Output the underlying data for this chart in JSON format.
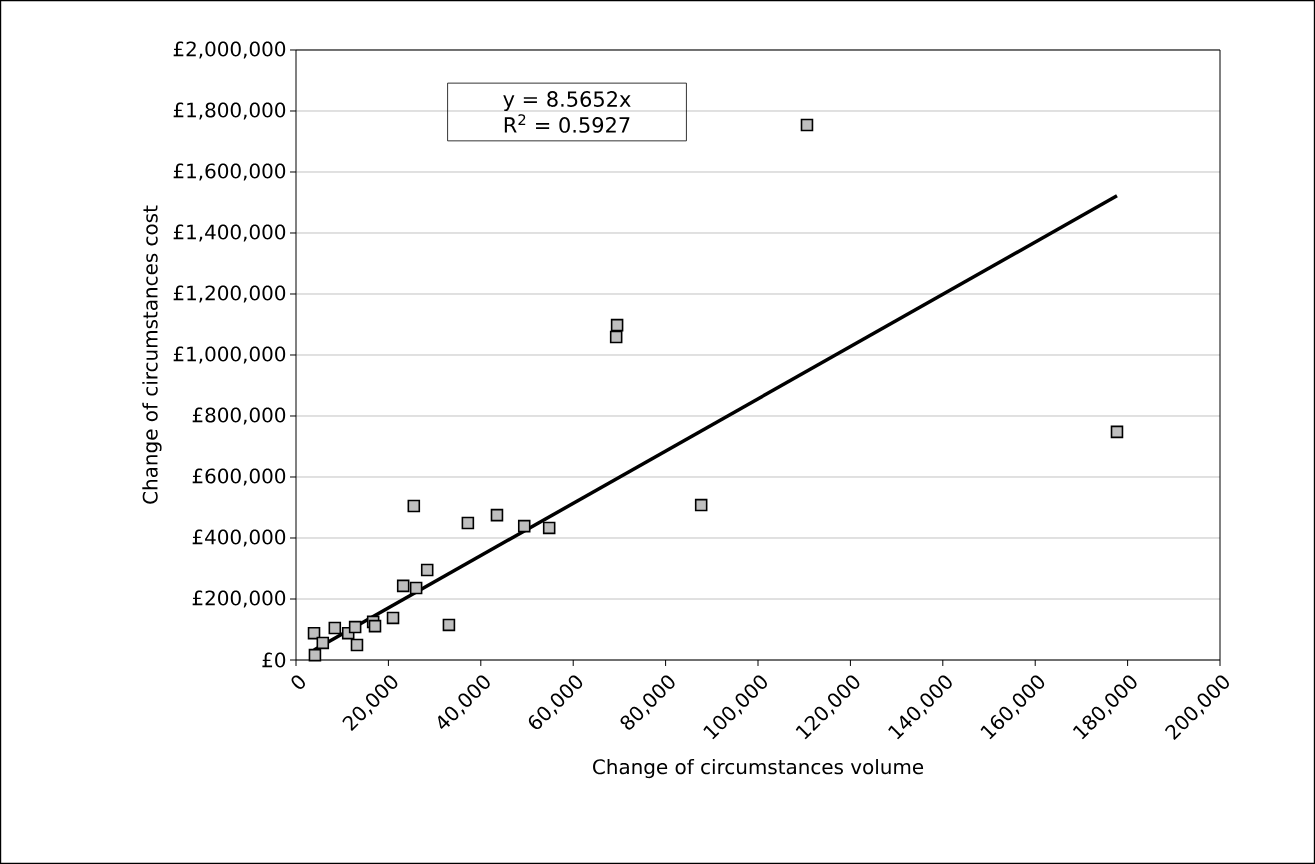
{
  "chart_data": {
    "type": "scatter",
    "xlabel": "Change of circumstances volume",
    "ylabel": "Change of circumstances cost",
    "annotations": [
      "y = 8.5652x",
      "R$^{2}$ = 0.5927"
    ],
    "xlim": [
      0,
      200000
    ],
    "ylim": [
      0,
      2000000
    ],
    "xticks": [
      0,
      {
        "value": 20000,
        "label": "20,000"
      },
      {
        "value": 40000,
        "label": "40,000"
      },
      {
        "value": 60000,
        "label": "60,000"
      },
      {
        "value": 80000,
        "label": "80,000"
      },
      {
        "value": 100000,
        "label": "100,000"
      },
      {
        "value": 120000,
        "label": "120,000"
      },
      {
        "value": 140000,
        "label": "140,000"
      },
      {
        "value": 160000,
        "label": "160,000"
      },
      {
        "value": 180000,
        "label": "180,000"
      },
      {
        "value": 200000,
        "label": "200,000"
      }
    ],
    "yticks": [
      {
        "value": 0,
        "label": "£0"
      },
      {
        "value": 200000,
        "label": "£200,000"
      },
      {
        "value": 400000,
        "label": "£400,000"
      },
      {
        "value": 600000,
        "label": "£600,000"
      },
      {
        "value": 800000,
        "label": "£800,000"
      },
      {
        "value": 1000000,
        "label": "£1,000,000"
      },
      {
        "value": 1200000,
        "label": "£1,200,000"
      },
      {
        "value": 1400000,
        "label": "£1,400,000"
      },
      {
        "value": 1600000,
        "label": "£1,600,000"
      },
      {
        "value": 1800000,
        "label": "£1,800,000"
      },
      {
        "value": 2000000,
        "label": "£2,000,000"
      }
    ],
    "grid": "y",
    "series": [
      {
        "marker": "square",
        "color": "#bfbfbf",
        "x": [
          3900,
          4100,
          5800,
          8400,
          11300,
          12800,
          13200,
          16700,
          17100,
          21000,
          23200,
          26000,
          28400,
          33100,
          25500,
          37200,
          43500,
          49400,
          54800,
          69300,
          69500,
          87700,
          110600,
          177700
        ],
        "values": [
          88000,
          16000,
          56000,
          105000,
          88000,
          108000,
          49000,
          125000,
          111000,
          138000,
          243000,
          236000,
          295000,
          115000,
          505000,
          449000,
          475000,
          439000,
          433000,
          1059000,
          1098000,
          508000,
          1754000,
          748000
        ]
      },
      {
        "type": "line",
        "color": "#000000",
        "x": [
          3900,
          177700
        ],
        "values": [
          33000,
          1522000
        ]
      }
    ]
  }
}
